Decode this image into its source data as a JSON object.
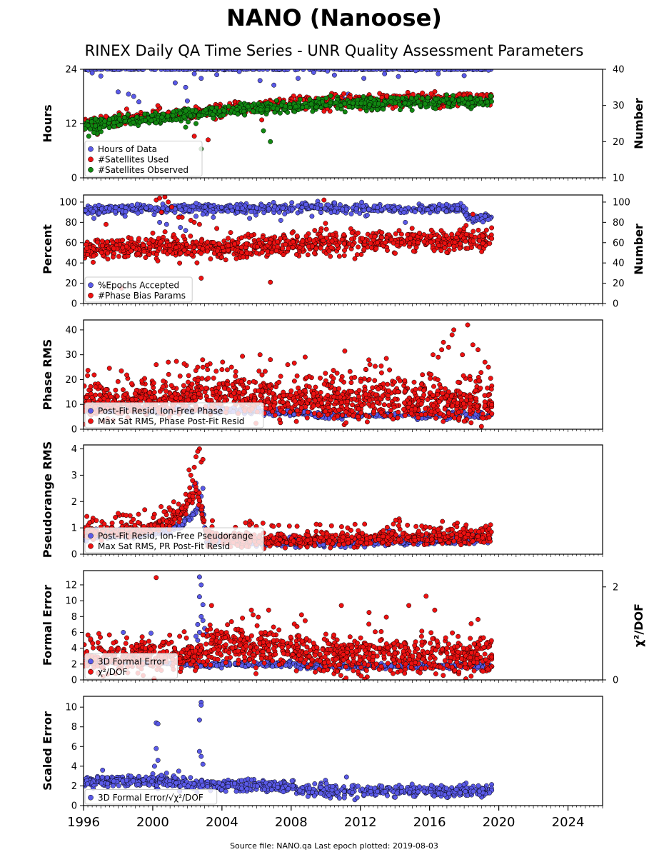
{
  "page": {
    "title": "NANO (Nanoose)",
    "subtitle": "RINEX Daily QA Time Series - UNR Quality Assessment Parameters",
    "footer": "Source file: NANO.qa Last epoch plotted: 2019-08-03"
  },
  "colors": {
    "blue": "#5a5ae8",
    "red": "#ee1111",
    "green": "#118811",
    "edge": "#000000"
  },
  "chart_data": [
    {
      "type": "scatter",
      "ylabel": "Hours",
      "ylabel_right": "Number",
      "xlim": [
        1996,
        2026
      ],
      "ylim": [
        0,
        24
      ],
      "ylim_right": [
        10,
        40
      ],
      "yticks": [
        0,
        12,
        24
      ],
      "yticks_right": [
        10,
        20,
        30,
        40
      ],
      "xticks": [],
      "legend_placement": "lower-left",
      "series": [
        {
          "name": "Hours of Data",
          "color": "blue",
          "axis": "left",
          "base": [
            [
              1996,
              24
            ],
            [
              2019.6,
              24
            ]
          ],
          "noise": 0.05,
          "outlier_values": [
            23.2,
            22.5,
            19,
            18.5,
            18,
            16.8,
            21,
            20,
            17,
            23,
            22,
            22.8,
            23.5,
            21.5,
            20.5,
            22,
            23.3,
            24,
            23.6,
            22.7,
            16.5,
            17.5,
            18.5,
            22,
            23,
            22.4,
            23.7,
            23,
            22.6,
            23.8
          ],
          "outlier_x": [
            1996.5,
            1997,
            1998,
            1998.6,
            1998.9,
            1999.2,
            2001.3,
            2001.9,
            2002,
            2002.4,
            2002.8,
            2003.7,
            2005,
            2006.2,
            2007,
            2008.4,
            2009.3,
            2009.6,
            2010.1,
            2010.5,
            2010.9,
            2011,
            2011.3,
            2012.2,
            2013.4,
            2014.2,
            2015.2,
            2016.5,
            2018,
            2019.4
          ],
          "density": 320
        },
        {
          "name": "#Satellites Used",
          "color": "red",
          "axis": "right",
          "base": [
            [
              1996,
              25
            ],
            [
              2000,
              27
            ],
            [
              2004,
              28.5
            ],
            [
              2007,
              30
            ],
            [
              2010,
              31
            ],
            [
              2019.6,
              32
            ]
          ],
          "noise": 0.9,
          "outlier_values": [
            24,
            22,
            21.5,
            20.5,
            32.5,
            29,
            26,
            32
          ],
          "outlier_x": [
            1996.4,
            1996.8,
            2002.4,
            2003.2,
            2008.5,
            2012,
            2006.3,
            2018
          ],
          "density": 700
        },
        {
          "name": "#Satellites Observed",
          "color": "green",
          "axis": "right",
          "base": [
            [
              1996,
              24.5
            ],
            [
              2000,
              26.5
            ],
            [
              2004,
              28.3
            ],
            [
              2007,
              29.5
            ],
            [
              2010,
              30.5
            ],
            [
              2019.6,
              31
            ]
          ],
          "noise": 0.8,
          "outlier_values": [
            18,
            20,
            23,
            21.5,
            22.5,
            24,
            25
          ],
          "outlier_x": [
            2002.8,
            2006.8,
            2006.4,
            1996.3,
            1996.6,
            2001.9,
            2002.5
          ],
          "density": 700
        }
      ]
    },
    {
      "type": "scatter",
      "ylabel": "Percent",
      "ylabel_right": "Number",
      "xlim": [
        1996,
        2026
      ],
      "ylim": [
        0,
        107
      ],
      "ylim_right": [
        0,
        107
      ],
      "yticks": [
        0,
        20,
        40,
        60,
        80,
        100
      ],
      "yticks_right": [
        0,
        20,
        40,
        60,
        80,
        100
      ],
      "xticks": [],
      "legend_placement": "lower-left",
      "series": [
        {
          "name": "%Epochs Accepted",
          "color": "blue",
          "axis": "left",
          "base": [
            [
              1996,
              93
            ],
            [
              2008,
              94
            ],
            [
              2018.1,
              93
            ],
            [
              2018.2,
              84
            ],
            [
              2019.6,
              84
            ]
          ],
          "noise": 2.2,
          "outlier_values": [
            84,
            86,
            80,
            78,
            75,
            72,
            86,
            88,
            85,
            84,
            82,
            86,
            87,
            80
          ],
          "outlier_x": [
            1996.6,
            1998.4,
            2000.4,
            2000.8,
            2001.6,
            2001.9,
            2002.5,
            2002.9,
            2003.5,
            2005.6,
            2007.4,
            2009.2,
            2012.4,
            2014.6
          ],
          "density": 700
        },
        {
          "name": "#Phase Bias Params",
          "color": "red",
          "axis": "right",
          "base": [
            [
              1996,
              52
            ],
            [
              2000,
              56
            ],
            [
              2004,
              54
            ],
            [
              2008,
              58
            ],
            [
              2012,
              61
            ],
            [
              2019.6,
              63
            ]
          ],
          "noise": 5.5,
          "outlier_values": [
            102,
            104,
            105,
            100,
            95,
            90,
            85,
            80,
            78,
            74,
            70,
            25,
            21,
            102,
            15,
            88,
            78,
            85,
            82
          ],
          "outlier_x": [
            2000.2,
            2000.4,
            2000.7,
            2000.9,
            2001.1,
            2000.5,
            2001.7,
            2002.4,
            2002.7,
            2003.7,
            2004.5,
            2002.8,
            2006.8,
            2009.9,
            1998.2,
            2018.5,
            1997.3,
            2001.5,
            2002.2
          ],
          "density": 900
        }
      ]
    },
    {
      "type": "scatter",
      "ylabel": "Phase RMS",
      "xlim": [
        1996,
        2026
      ],
      "ylim": [
        0,
        44
      ],
      "yticks": [
        0,
        10,
        20,
        30,
        40
      ],
      "xticks": [],
      "legend_placement": "lower-left",
      "series": [
        {
          "name": "Post-Fit Resid, Ion-Free Phase",
          "color": "blue",
          "axis": "left",
          "base": [
            [
              1996,
              8
            ],
            [
              2004,
              7.5
            ],
            [
              2009,
              6.5
            ],
            [
              2009.2,
              5.5
            ],
            [
              2019.6,
              5.8
            ]
          ],
          "noise": 0.6,
          "outlier_values": [],
          "outlier_x": [],
          "density": 500
        },
        {
          "name": "Max Sat RMS, Phase Post-Fit Resid",
          "color": "red",
          "axis": "left",
          "base": [
            [
              1996,
              10
            ],
            [
              2000,
              11
            ],
            [
              2002,
              13
            ],
            [
              2006,
              12
            ],
            [
              2009,
              11
            ],
            [
              2019.6,
              10
            ]
          ],
          "noise": 3.2,
          "spread_up": 11,
          "outlier_values": [
            26,
            27,
            25,
            24,
            30,
            28,
            26,
            31.5,
            28.5,
            30,
            32,
            35,
            33,
            38,
            40,
            42,
            34,
            32,
            29,
            30,
            27,
            25,
            16,
            14,
            17
          ],
          "outlier_x": [
            2000.2,
            2000.9,
            2002.6,
            2004,
            2006.2,
            2006.8,
            2007.8,
            2011.1,
            2013.5,
            2016.2,
            2016.7,
            2016.8,
            2017.1,
            2017.3,
            2017.4,
            2018.2,
            2018.5,
            2018.8,
            2016.5,
            2017.9,
            2019.2,
            2019.4,
            1997.3,
            1998.4,
            1996.7
          ],
          "density": 1200
        }
      ]
    },
    {
      "type": "scatter",
      "ylabel": "Pseudorange RMS",
      "xlim": [
        1996,
        2026
      ],
      "ylim": [
        0,
        4.15
      ],
      "yticks": [
        0,
        1,
        2,
        3,
        4
      ],
      "xticks": [],
      "legend_placement": "lower-left",
      "series": [
        {
          "name": "Post-Fit Resid, Ion-Free Pseudorange",
          "color": "blue",
          "axis": "left",
          "base": [
            [
              1996,
              0.7
            ],
            [
              2000,
              0.8
            ],
            [
              2001.5,
              1.0
            ],
            [
              2002.4,
              1.6
            ],
            [
              2002.9,
              1.7
            ],
            [
              2003.1,
              0.5
            ],
            [
              2008,
              0.45
            ],
            [
              2019.6,
              0.55
            ]
          ],
          "noise": 0.08,
          "outlier_values": [
            2.6,
            2.4,
            2.2,
            2.5,
            2.7,
            0.95,
            0.9
          ],
          "outlier_x": [
            2002.4,
            2002.6,
            2002.8,
            2002.9,
            2002.5,
            2013.6,
            2013.7
          ],
          "density": 600
        },
        {
          "name": "Max Sat RMS, PR Post-Fit Resid",
          "color": "red",
          "axis": "left",
          "base": [
            [
              1996,
              0.8
            ],
            [
              1999,
              0.9
            ],
            [
              2000.5,
              1.1
            ],
            [
              2001.8,
              1.6
            ],
            [
              2002.5,
              2.5
            ],
            [
              2003.0,
              1.0
            ],
            [
              2003.2,
              0.5
            ],
            [
              2008,
              0.5
            ],
            [
              2019.6,
              0.65
            ]
          ],
          "noise": 0.12,
          "spread_up": 0.6,
          "outlier_values": [
            4.0,
            3.9,
            3.7,
            3.5,
            3.3,
            3.0,
            2.8,
            1.55,
            1.1,
            1.05,
            0.95,
            0.9,
            3.6,
            3.2
          ],
          "outlier_x": [
            2002.7,
            2002.6,
            2002.5,
            2002.8,
            2002.4,
            2002.2,
            2002.3,
            1998.0,
            2005.6,
            2000.3,
            2016.5,
            2018.4,
            2002.9,
            2002.1
          ],
          "density": 900
        }
      ]
    },
    {
      "type": "scatter",
      "ylabel": "Formal Error",
      "ylabel_right": "χ²/DOF",
      "xlim": [
        1996,
        2026
      ],
      "ylim": [
        0,
        13.8
      ],
      "ylim_right": [
        0,
        2.35
      ],
      "yticks": [
        0,
        2,
        4,
        6,
        8,
        10,
        12
      ],
      "yticks_right": [
        0,
        2
      ],
      "xticks": [],
      "legend_placement": "lower-left",
      "series": [
        {
          "name": "3D Formal Error",
          "color": "blue",
          "axis": "left",
          "base": [
            [
              1996,
              2.3
            ],
            [
              2000,
              2.2
            ],
            [
              2002,
              2.0
            ],
            [
              2003,
              1.9
            ],
            [
              2008,
              2.0
            ],
            [
              2009,
              1.7
            ],
            [
              2019.6,
              1.8
            ]
          ],
          "noise": 0.15,
          "outlier_values": [
            13,
            12,
            10.5,
            9.5,
            8,
            7.5,
            7,
            6.5,
            6,
            5.8,
            5.5,
            5,
            6,
            5.9
          ],
          "outlier_x": [
            2002.7,
            2002.8,
            2002.7,
            2002.9,
            2002.8,
            2002.9,
            2002.6,
            2003,
            2002.7,
            2003.1,
            2002.5,
            2002.6,
            1998.3,
            1999.9
          ],
          "density": 550
        },
        {
          "name": "χ²/DOF",
          "color": "red",
          "axis": "right",
          "base": [
            [
              1996,
              0.45
            ],
            [
              2000,
              0.5
            ],
            [
              2003,
              0.5
            ],
            [
              2003.3,
              0.7
            ],
            [
              2008.5,
              0.65
            ],
            [
              2009,
              0.5
            ],
            [
              2019.6,
              0.5
            ]
          ],
          "noise": 0.18,
          "spread_up": 0.3,
          "outlier_values": [
            2.2,
            1.6,
            1.5,
            1.4,
            1.35,
            1.5,
            1.4,
            1.6,
            1.45,
            1.35,
            1.8,
            1.6,
            1.5,
            1.3
          ],
          "outlier_x": [
            2000.2,
            2003.4,
            2005.7,
            2005.8,
            2006.1,
            2006.7,
            2008.6,
            2010.9,
            2012.5,
            2013.5,
            2015.8,
            2014.8,
            2016.3,
            2018.8
          ],
          "density": 1100
        }
      ]
    },
    {
      "type": "scatter",
      "ylabel": "Scaled Error",
      "xlim": [
        1996,
        2026
      ],
      "ylim": [
        0,
        11.1
      ],
      "yticks": [
        0,
        2,
        4,
        6,
        8,
        10
      ],
      "xticks": [
        1996,
        2000,
        2004,
        2008,
        2012,
        2016,
        2020,
        2024
      ],
      "xtick_labels": [
        "1996",
        "2000",
        "2004",
        "2008",
        "2012",
        "2016",
        "2020",
        "2024"
      ],
      "legend_placement": "lower-left",
      "series": [
        {
          "name": "3D Formal Error/√χ²/DOF",
          "color": "blue",
          "axis": "left",
          "base": [
            [
              1996,
              2.4
            ],
            [
              2000,
              2.5
            ],
            [
              2003,
              2.1
            ],
            [
              2008,
              1.9
            ],
            [
              2009,
              1.5
            ],
            [
              2019.6,
              1.5
            ]
          ],
          "noise": 0.3,
          "outlier_values": [
            10.5,
            10.2,
            8.7,
            8.4,
            8.3,
            5.8,
            5.5,
            5,
            4.6,
            4.2,
            4,
            3.6,
            3.3,
            3.5,
            3.1,
            2.9
          ],
          "outlier_x": [
            2002.8,
            2002.8,
            2002.7,
            2000.2,
            2000.3,
            2000.2,
            2002.7,
            2002.8,
            2000.3,
            2002.9,
            2000.1,
            1997.1,
            2000.8,
            2001.5,
            2000.5,
            2011.2
          ],
          "density": 800
        }
      ]
    }
  ]
}
